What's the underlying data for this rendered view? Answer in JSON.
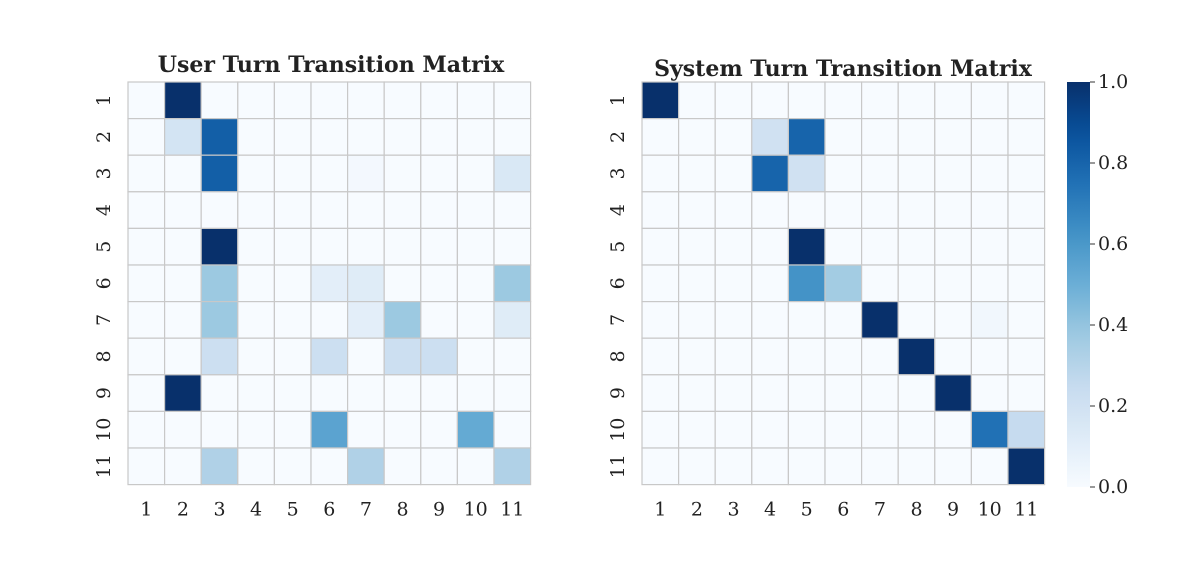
{
  "chart_data": [
    {
      "type": "heatmap",
      "title": "User Turn Transition Matrix",
      "xlabel": "",
      "ylabel": "",
      "row_labels": [
        "1",
        "2",
        "3",
        "4",
        "5",
        "6",
        "7",
        "8",
        "9",
        "10",
        "11"
      ],
      "col_labels": [
        "1",
        "2",
        "3",
        "4",
        "5",
        "6",
        "7",
        "8",
        "9",
        "10",
        "11"
      ],
      "values": [
        [
          0,
          1.0,
          0,
          0,
          0,
          0,
          0,
          0,
          0,
          0,
          0
        ],
        [
          0,
          0.18,
          0.82,
          0,
          0,
          0,
          0,
          0,
          0,
          0,
          0
        ],
        [
          0,
          0,
          0.82,
          0,
          0,
          0,
          0.02,
          0,
          0,
          0,
          0.15
        ],
        [
          0,
          0,
          0,
          0,
          0,
          0,
          0,
          0,
          0,
          0,
          0
        ],
        [
          0,
          0,
          1.0,
          0,
          0,
          0,
          0,
          0,
          0,
          0,
          0
        ],
        [
          0,
          0,
          0.38,
          0,
          0,
          0.1,
          0.12,
          0,
          0,
          0,
          0.38
        ],
        [
          0,
          0,
          0.38,
          0,
          0,
          0,
          0.1,
          0.38,
          0,
          0,
          0.12
        ],
        [
          0,
          0,
          0.22,
          0,
          0,
          0.22,
          0,
          0.22,
          0.22,
          0,
          0
        ],
        [
          0,
          1.0,
          0,
          0,
          0,
          0,
          0,
          0,
          0,
          0,
          0
        ],
        [
          0,
          0,
          0,
          0,
          0,
          0.55,
          0,
          0,
          0,
          0.52,
          0
        ],
        [
          0,
          0,
          0.32,
          0,
          0,
          0,
          0.32,
          0,
          0,
          0,
          0.32
        ]
      ],
      "vmin": 0.0,
      "vmax": 1.0,
      "colormap": "Blues"
    },
    {
      "type": "heatmap",
      "title": "System Turn Transition Matrix",
      "xlabel": "",
      "ylabel": "",
      "row_labels": [
        "1",
        "2",
        "3",
        "4",
        "5",
        "6",
        "7",
        "8",
        "9",
        "10",
        "11"
      ],
      "col_labels": [
        "1",
        "2",
        "3",
        "4",
        "5",
        "6",
        "7",
        "8",
        "9",
        "10",
        "11"
      ],
      "values": [
        [
          1.0,
          0,
          0,
          0,
          0,
          0,
          0,
          0,
          0,
          0,
          0
        ],
        [
          0,
          0,
          0,
          0.2,
          0.8,
          0,
          0,
          0,
          0,
          0,
          0
        ],
        [
          0,
          0,
          0,
          0.8,
          0.2,
          0,
          0,
          0,
          0,
          0,
          0
        ],
        [
          0,
          0,
          0,
          0,
          0,
          0,
          0,
          0,
          0,
          0,
          0
        ],
        [
          0,
          0,
          0,
          0,
          1.0,
          0,
          0,
          0,
          0,
          0,
          0
        ],
        [
          0,
          0,
          0,
          0,
          0.62,
          0.36,
          0,
          0,
          0,
          0,
          0
        ],
        [
          0,
          0,
          0,
          0,
          0,
          0,
          1.0,
          0,
          0,
          0.03,
          0
        ],
        [
          0,
          0,
          0,
          0,
          0,
          0,
          0,
          1.0,
          0,
          0,
          0
        ],
        [
          0,
          0,
          0,
          0,
          0,
          0,
          0,
          0,
          1.0,
          0,
          0
        ],
        [
          0,
          0,
          0,
          0,
          0,
          0,
          0,
          0,
          0,
          0.75,
          0.25
        ],
        [
          0,
          0,
          0,
          0,
          0,
          0,
          0,
          0,
          0,
          0,
          1.0
        ]
      ],
      "vmin": 0.0,
      "vmax": 1.0,
      "colormap": "Blues"
    }
  ],
  "colorbar": {
    "ticks": [
      "0.0",
      "0.2",
      "0.4",
      "0.6",
      "0.8",
      "1.0"
    ],
    "tick_values": [
      0.0,
      0.2,
      0.4,
      0.6,
      0.8,
      1.0
    ]
  }
}
